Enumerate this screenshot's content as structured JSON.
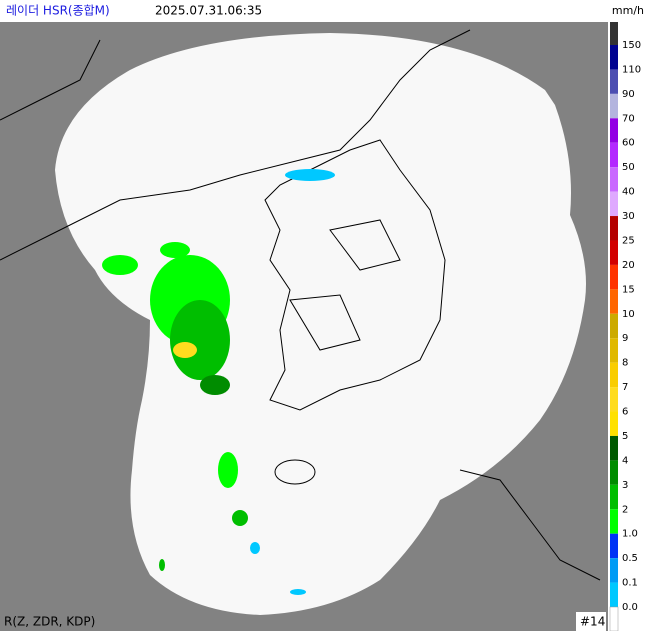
{
  "header": {
    "title": "레이더 HSR(종합M)",
    "timestamp": "2025.07.31.06:35",
    "unit": "mm/h"
  },
  "legend": {
    "labels": [
      "150",
      "110",
      "90",
      "70",
      "60",
      "50",
      "40",
      "30",
      "25",
      "20",
      "15",
      "10",
      "9",
      "8",
      "7",
      "6",
      "5",
      "4",
      "3",
      "2",
      "1.0",
      "0.5",
      "0.1",
      "0.0"
    ],
    "colors": [
      "#333333",
      "#000390",
      "#4c4eb1",
      "#b3b4de",
      "#9300e4",
      "#b329ff",
      "#c969ff",
      "#dfa9ff",
      "#b40000",
      "#d20000",
      "#ff3300",
      "#ff6600",
      "#ccaa00",
      "#e0b900",
      "#f9cd00",
      "#ffdc1f",
      "#ffe100",
      "#005a00",
      "#008c00",
      "#00be00",
      "#00ff00",
      "#0033f5",
      "#009bf5",
      "#00c8ff"
    ]
  },
  "footer": {
    "method": "R(Z, ZDR, KDP)",
    "frame": "#14"
  }
}
